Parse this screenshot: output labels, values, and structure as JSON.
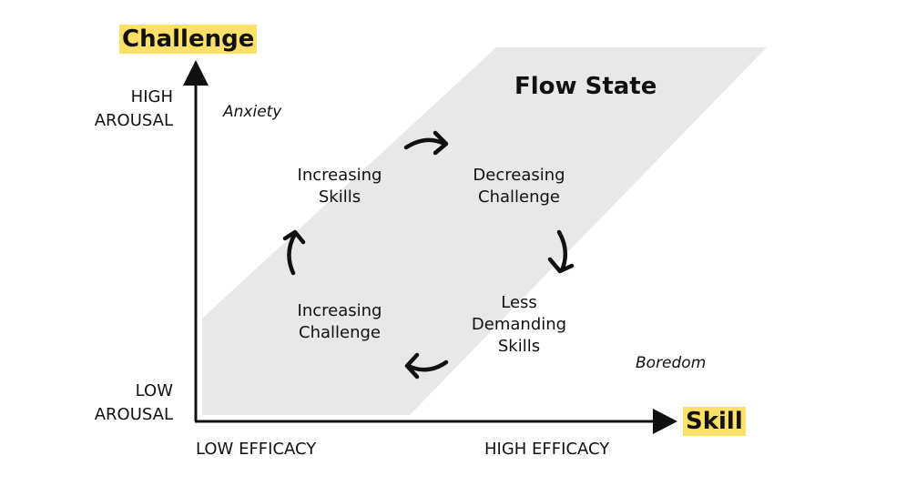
{
  "title": "Flow State",
  "axes": {
    "y_label": "Challenge",
    "x_label": "Skill",
    "y_high": [
      "HIGH",
      "AROUSAL"
    ],
    "y_low": [
      "LOW",
      "AROUSAL"
    ],
    "x_low": "LOW EFFICACY",
    "x_high": "HIGH EFFICACY"
  },
  "regions": {
    "anxiety": "Anxiety",
    "boredom": "Boredom"
  },
  "cycle": [
    {
      "line1": "Increasing",
      "line2": "Skills"
    },
    {
      "line1": "Decreasing",
      "line2": "Challenge"
    },
    {
      "line1": "Less",
      "line2": "Demanding",
      "line3": "Skills"
    },
    {
      "line1": "Increasing",
      "line2": "Challenge"
    }
  ],
  "colors": {
    "flow_band": "#e8e8e8",
    "highlight": "#fce068",
    "ink": "#111111"
  }
}
